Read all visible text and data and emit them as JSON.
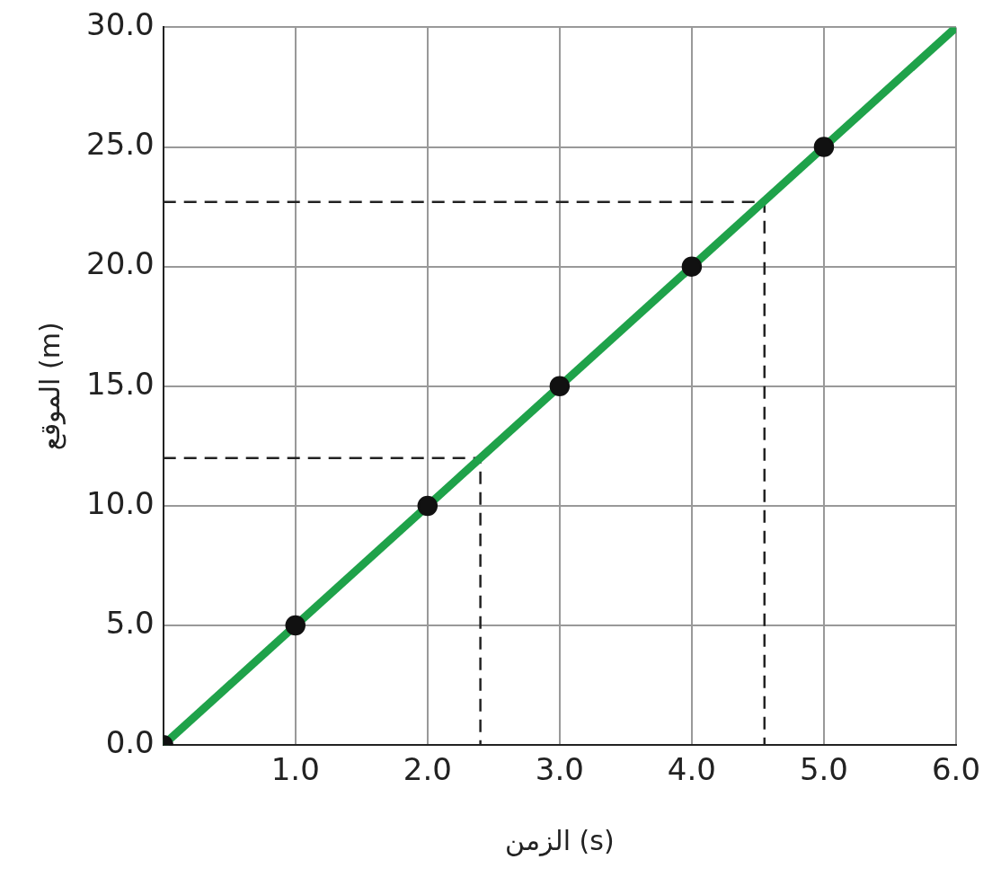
{
  "chart_data": {
    "type": "line",
    "xlabel": "الزمن (s)",
    "ylabel": "الموقع (m)",
    "xlim": [
      0,
      6
    ],
    "ylim": [
      0,
      30
    ],
    "xticks": [
      {
        "value": 0,
        "label": null
      },
      {
        "value": 1,
        "label": "1.0"
      },
      {
        "value": 2,
        "label": "2.0"
      },
      {
        "value": 3,
        "label": "3.0"
      },
      {
        "value": 4,
        "label": "4.0"
      },
      {
        "value": 5,
        "label": "5.0"
      },
      {
        "value": 6,
        "label": "6.0"
      }
    ],
    "yticks": [
      {
        "value": 0,
        "label": "0.0"
      },
      {
        "value": 5,
        "label": "5.0"
      },
      {
        "value": 10,
        "label": "10.0"
      },
      {
        "value": 15,
        "label": "15.0"
      },
      {
        "value": 20,
        "label": "20.0"
      },
      {
        "value": 25,
        "label": "25.0"
      },
      {
        "value": 30,
        "label": "30.0"
      }
    ],
    "grid": true,
    "legend": false,
    "series": [
      {
        "type": "line",
        "color": "#1fa24a",
        "marker": "none",
        "line_style": "solid",
        "x": [
          0,
          6
        ],
        "values": [
          0,
          30
        ]
      },
      {
        "type": "scatter",
        "color": "#111111",
        "marker": "circle",
        "x": [
          0,
          1,
          2,
          3,
          4,
          5
        ],
        "values": [
          0,
          5,
          10,
          15,
          20,
          25
        ]
      },
      {
        "type": "line",
        "color": "#222222",
        "marker": "none",
        "line_style": "dashed",
        "x": [
          0,
          2.4,
          2.4
        ],
        "values": [
          12,
          12,
          0
        ]
      },
      {
        "type": "line",
        "color": "#222222",
        "marker": "none",
        "line_style": "dashed",
        "x": [
          0,
          4.55,
          4.55
        ],
        "values": [
          22.7,
          22.7,
          0
        ]
      }
    ]
  }
}
